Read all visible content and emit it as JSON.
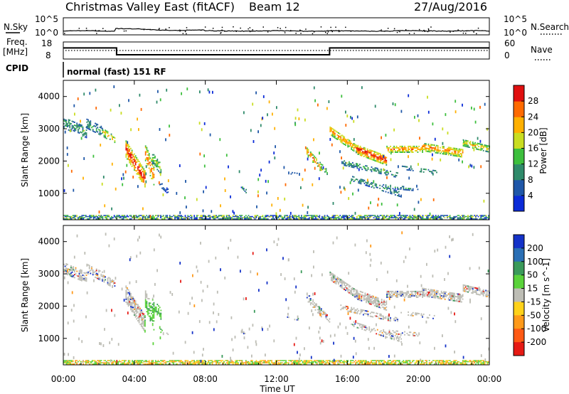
{
  "header": {
    "title": "Christmas Valley East (fitACF)",
    "beam": "Beam 12",
    "date": "27/Aug/2016"
  },
  "strip": {
    "nsky_label": "N.Sky",
    "nsearch_label": "N.Search",
    "nsky_ticks": [
      "10^5",
      "10^0"
    ],
    "nsearch_ticks": [
      "10^5",
      "10^0"
    ],
    "freq_label": "Freq.",
    "freq_unit": "[MHz]",
    "freq_ticks": [
      "18",
      "8"
    ],
    "nave_label": "Nave",
    "nave_ticks": [
      "60",
      "0"
    ],
    "cpid_label": "CPID",
    "cpid_text": "normal (fast) 151 RF"
  },
  "chart_data": [
    {
      "type": "line",
      "name": "frequency-strip",
      "x_hours": [
        0,
        3,
        3,
        15,
        15,
        24
      ],
      "freq_mhz": [
        14.5,
        14.5,
        10.5,
        10.5,
        14.5,
        14.5
      ],
      "freq_range": [
        8,
        18
      ],
      "nave_range": [
        0,
        60
      ]
    },
    {
      "type": "heatmap",
      "name": "power",
      "ylabel": "Slant Range [km]",
      "yticks": [
        "1000",
        "2000",
        "3000",
        "4000"
      ],
      "ylim": [
        180,
        4500
      ],
      "colorbar_label": "Power [dB]",
      "colorbar_ticks": [
        "4",
        "8",
        "12",
        "16",
        "20",
        "24",
        "28"
      ],
      "colorbar_range": [
        0,
        32
      ],
      "colors": [
        "#0b2bd8",
        "#1f57a8",
        "#2f8a6a",
        "#3dbf3d",
        "#c9dd21",
        "#ffb000",
        "#ff6a00",
        "#e01010"
      ]
    },
    {
      "type": "heatmap",
      "name": "velocity",
      "ylabel": "Slant Range [km]",
      "yticks": [
        "1000",
        "2000",
        "3000",
        "4000"
      ],
      "ylim": [
        180,
        4500
      ],
      "xlabel": "Time UT",
      "xticks": [
        "00:00",
        "04:00",
        "08:00",
        "12:00",
        "16:00",
        "20:00",
        "00:00"
      ],
      "xlim_hours": [
        0,
        24
      ],
      "colorbar_label": "Velocity [m s^-1]",
      "colorbar_ticks": [
        "200",
        "100",
        "50",
        "15",
        "-15",
        "-50",
        "-100",
        "-200"
      ],
      "colors": [
        "#1432c8",
        "#2a6fb5",
        "#3a9a5a",
        "#5ad23a",
        "#bdbdb5",
        "#ffd21a",
        "#ff9a1a",
        "#ff5a14",
        "#e61a14"
      ]
    }
  ]
}
